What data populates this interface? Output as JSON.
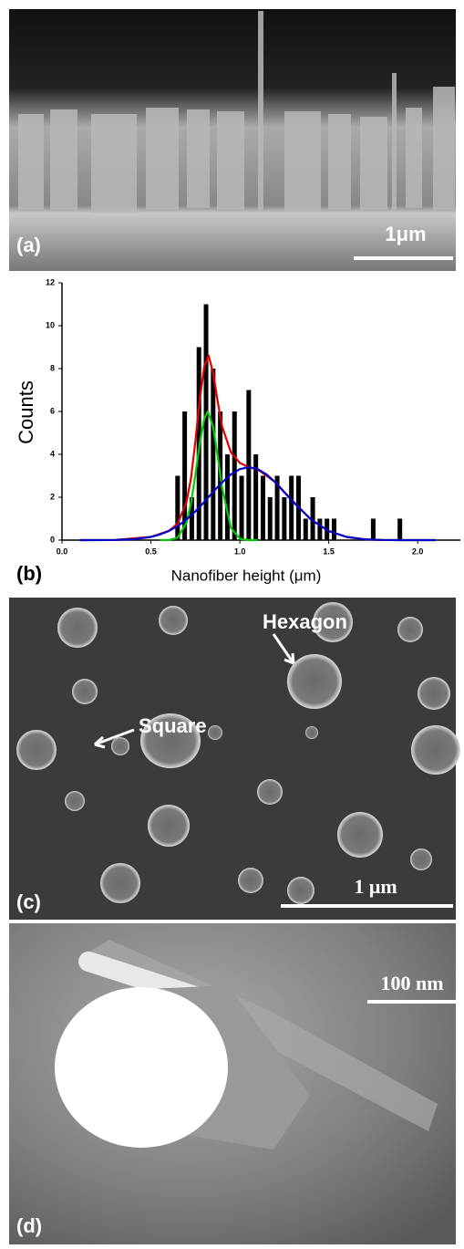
{
  "panels": {
    "a": {
      "label": "(a)",
      "scale_bar": "1μm"
    },
    "b": {
      "label": "(b)"
    },
    "c": {
      "label": "(c)",
      "scale_bar": "1 μm",
      "annotations": [
        "Hexagon",
        "Square"
      ]
    },
    "d": {
      "label": "(d)",
      "scale_bar": "100 nm"
    }
  },
  "chart_data": {
    "type": "bar",
    "x_label": "Nanofiber height (μm)",
    "y_label": "Counts",
    "color": "#000000",
    "x": [
      0.65,
      0.69,
      0.73,
      0.77,
      0.81,
      0.85,
      0.89,
      0.93,
      0.97,
      1.01,
      1.05,
      1.09,
      1.13,
      1.17,
      1.21,
      1.25,
      1.29,
      1.33,
      1.37,
      1.41,
      1.45,
      1.49,
      1.53,
      1.75,
      1.9
    ],
    "values": [
      3,
      6,
      2,
      9,
      11,
      8,
      6,
      4,
      6,
      3,
      7,
      4,
      3,
      2,
      3,
      2,
      3,
      3,
      1,
      2,
      1,
      1,
      1,
      1,
      1
    ],
    "series": [
      {
        "type": "line",
        "color": "#e00000",
        "x": [
          0.1,
          0.3,
          0.5,
          0.6,
          0.65,
          0.7,
          0.725,
          0.75,
          0.775,
          0.8,
          0.825,
          0.85,
          0.875,
          0.9,
          0.95,
          1.0,
          1.05,
          1.1,
          1.2,
          1.3,
          1.4,
          1.5,
          1.6,
          1.7,
          1.8,
          1.9,
          2.1
        ],
        "values": [
          0,
          0.01,
          0.15,
          0.43,
          0.76,
          1.77,
          2.85,
          4.6,
          6.6,
          8.1,
          8.6,
          7.8,
          6.5,
          5.3,
          4.1,
          3.6,
          3.4,
          3.3,
          2.7,
          1.8,
          0.96,
          0.42,
          0.15,
          0.04,
          0.01,
          0,
          0
        ]
      },
      {
        "type": "line",
        "color": "#00cc00",
        "x": [
          0.55,
          0.6,
          0.65,
          0.7,
          0.725,
          0.75,
          0.775,
          0.8,
          0.82,
          0.85,
          0.875,
          0.9,
          0.95,
          1.0,
          1.05,
          1.1
        ],
        "values": [
          0,
          0.01,
          0.11,
          0.81,
          1.71,
          3.03,
          4.53,
          5.67,
          6,
          5.29,
          3.94,
          2.46,
          0.57,
          0.07,
          0,
          0
        ]
      },
      {
        "type": "line",
        "color": "#0000cc",
        "x": [
          0.1,
          0.2,
          0.3,
          0.4,
          0.5,
          0.55,
          0.6,
          0.65,
          0.7,
          0.75,
          0.8,
          0.85,
          0.9,
          0.95,
          1.0,
          1.05,
          1.1,
          1.15,
          1.2,
          1.3,
          1.4,
          1.5,
          1.6,
          1.7,
          1.8,
          1.9,
          2.0,
          2.1
        ],
        "values": [
          0,
          0,
          0.01,
          0.04,
          0.15,
          0.26,
          0.42,
          0.65,
          0.96,
          1.34,
          1.78,
          2.25,
          2.69,
          3.07,
          3.31,
          3.4,
          3.31,
          3.07,
          2.69,
          1.78,
          0.96,
          0.42,
          0.15,
          0.04,
          0.01,
          0,
          0,
          0
        ]
      }
    ],
    "xlim": [
      0,
      2.24
    ],
    "ylim": [
      0,
      12
    ],
    "xticks": [
      {
        "value": 0,
        "label": "0.0"
      },
      {
        "value": 0.5,
        "label": "0.5"
      },
      {
        "value": 1,
        "label": "1.0"
      },
      {
        "value": 1.5,
        "label": "1.5"
      },
      {
        "value": 2,
        "label": "2.0"
      }
    ],
    "yticks": [
      0,
      2,
      4,
      6,
      8,
      10,
      12
    ]
  }
}
